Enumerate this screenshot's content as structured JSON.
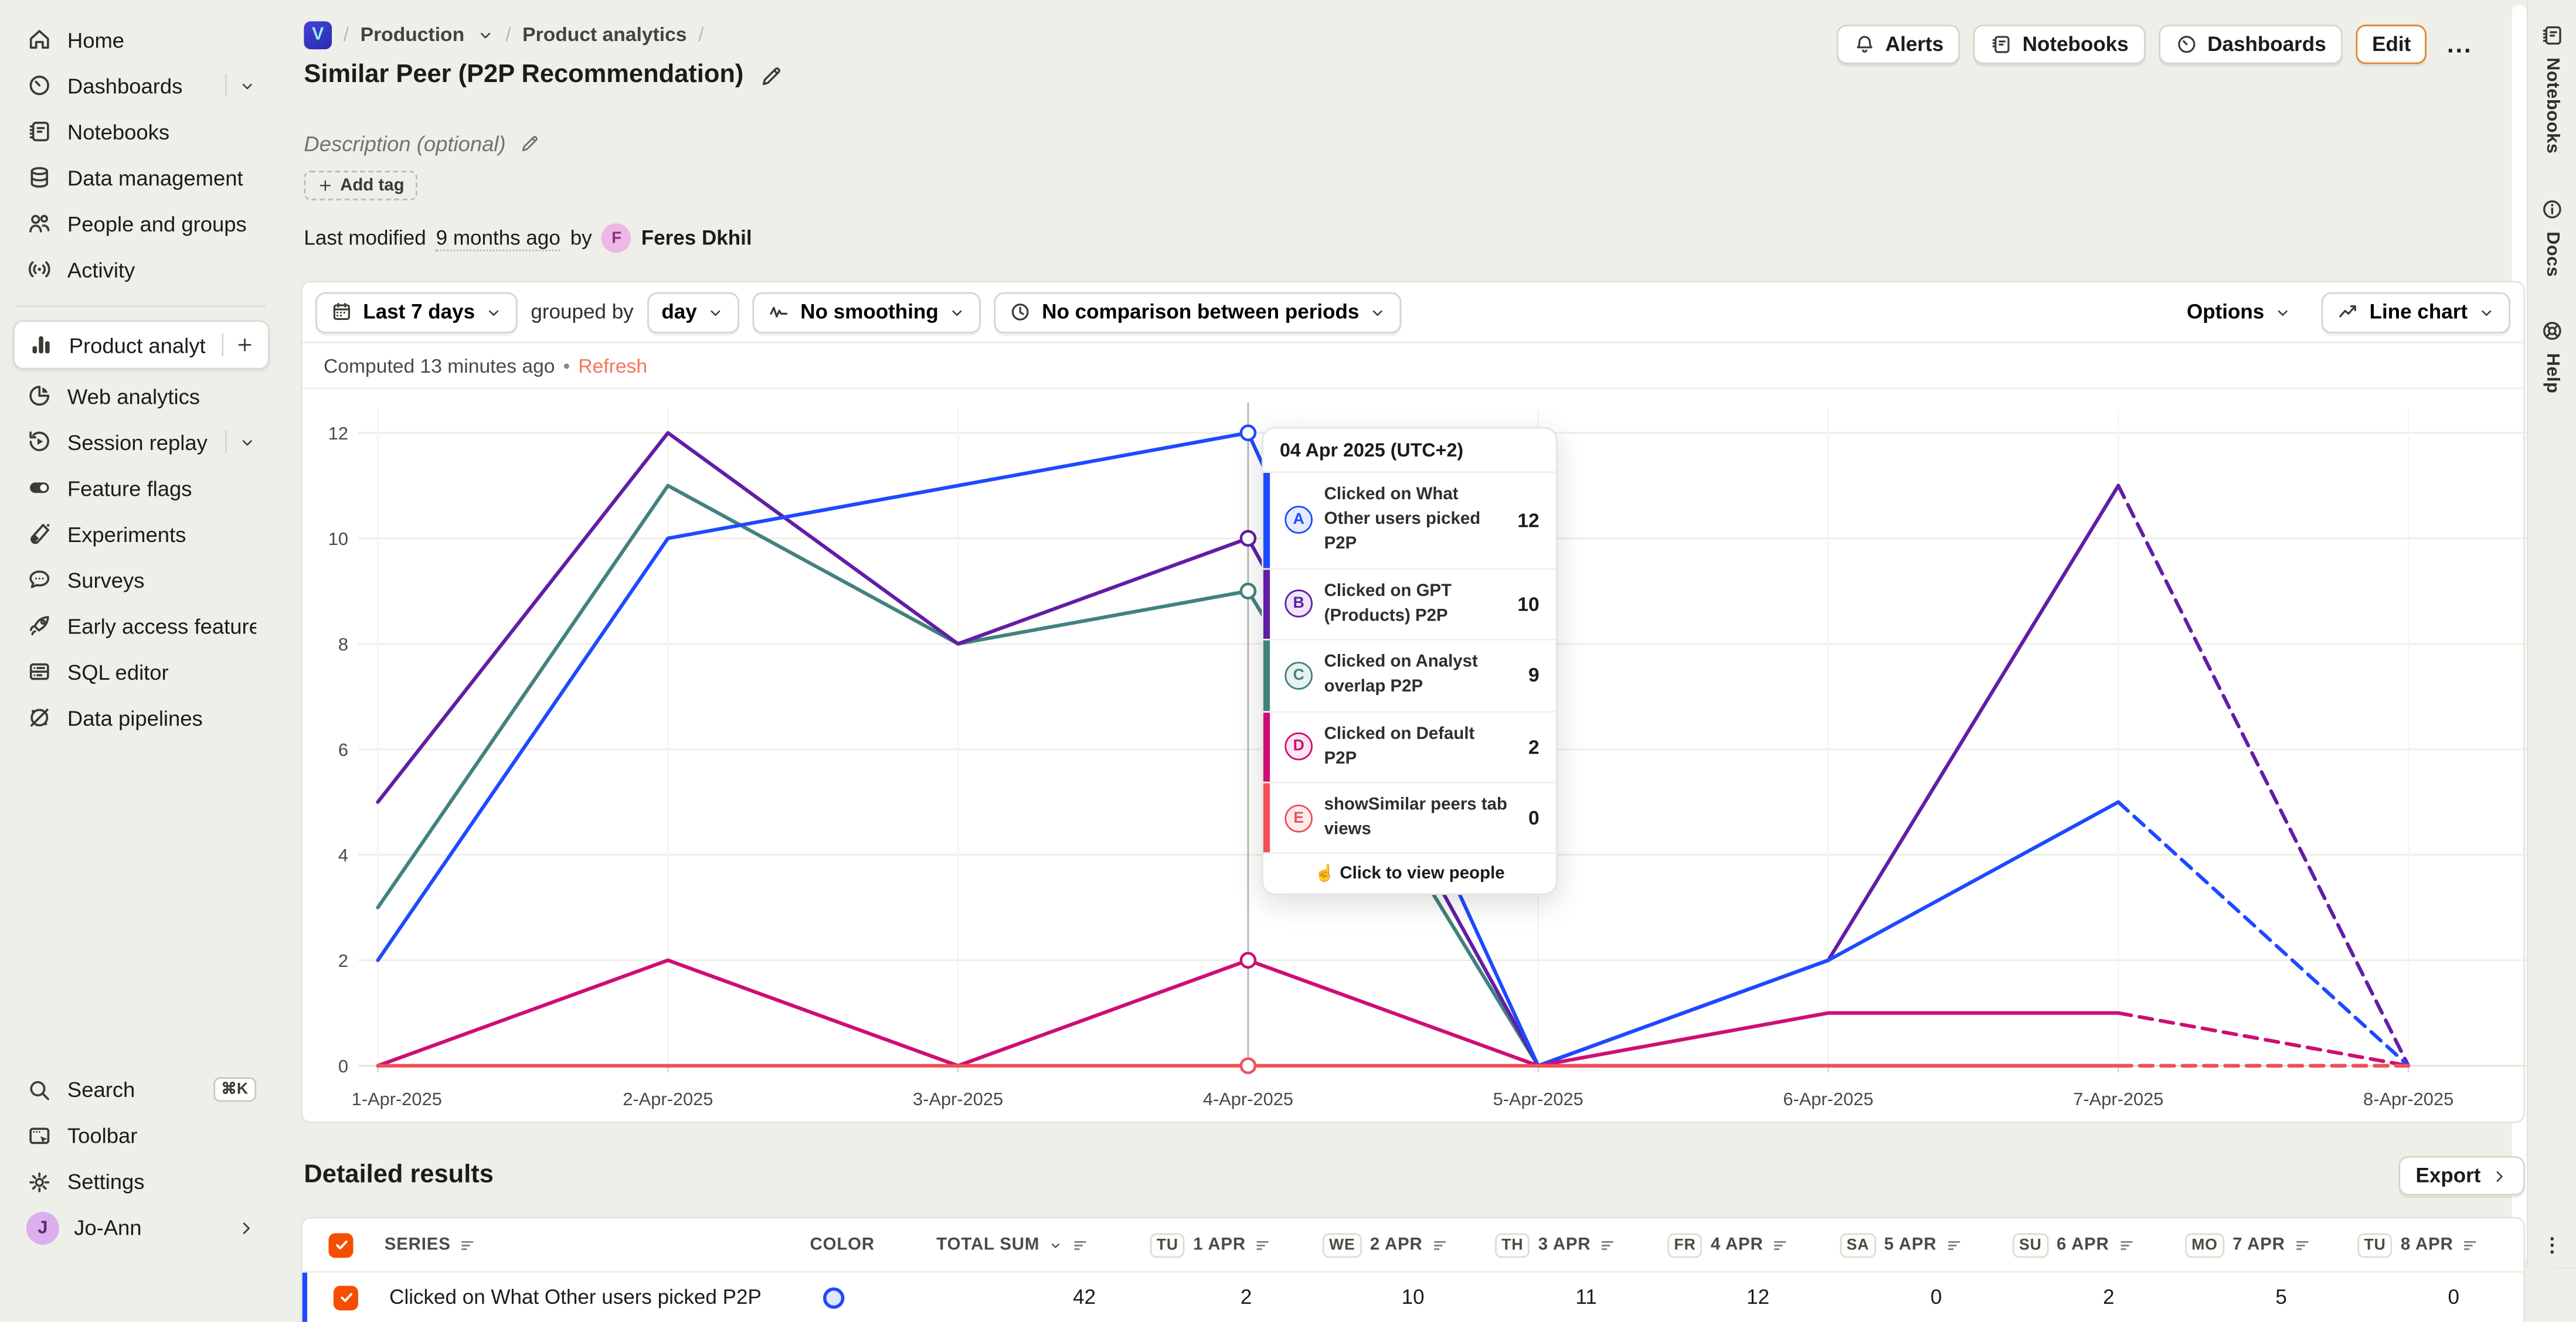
{
  "breadcrumb": {
    "separator": "/",
    "project": "Production",
    "section": "Product analytics",
    "logo_letter": "V"
  },
  "title": "Similar Peer (P2P Recommendation)",
  "header_buttons": {
    "alerts": "Alerts",
    "notebooks": "Notebooks",
    "dashboards": "Dashboards",
    "edit": "Edit",
    "more": "..."
  },
  "description_placeholder": "Description (optional)",
  "tags": {
    "add_tag_label": "Add tag"
  },
  "last_modified": {
    "prefix": "Last modified",
    "time": "9 months ago",
    "by": "by",
    "author": "Feres Dkhil",
    "author_initial": "F"
  },
  "sidebar": {
    "items": [
      {
        "label": "Home",
        "icon": "home"
      },
      {
        "label": "Dashboards",
        "icon": "gauge",
        "trailing": "chevron"
      },
      {
        "label": "Notebooks",
        "icon": "notebook"
      },
      {
        "label": "Data management",
        "icon": "database"
      },
      {
        "label": "People and groups",
        "icon": "people"
      },
      {
        "label": "Activity",
        "icon": "activity"
      },
      {
        "divider": true
      },
      {
        "label": "Product analytics",
        "icon": "bar-chart",
        "active": true,
        "trailing": "plus"
      },
      {
        "label": "Web analytics",
        "icon": "pie"
      },
      {
        "label": "Session replay",
        "icon": "session-replay",
        "trailing": "chevron"
      },
      {
        "label": "Feature flags",
        "icon": "toggle"
      },
      {
        "label": "Experiments",
        "icon": "flask"
      },
      {
        "label": "Surveys",
        "icon": "chat"
      },
      {
        "label": "Early access features",
        "icon": "rocket"
      },
      {
        "label": "SQL editor",
        "icon": "server"
      },
      {
        "label": "Data pipelines",
        "icon": "pipeline"
      }
    ],
    "bottom": [
      {
        "label": "Search",
        "icon": "search",
        "shortcut": "⌘K"
      },
      {
        "label": "Toolbar",
        "icon": "toolbar"
      },
      {
        "label": "Settings",
        "icon": "gear"
      }
    ],
    "user": {
      "name": "Jo-Ann",
      "initial": "J"
    }
  },
  "filters": {
    "date_range": "Last 7 days",
    "grouped_by_label": "grouped by",
    "interval": "day",
    "smoothing": "No smoothing",
    "comparison": "No comparison between periods",
    "options": "Options",
    "chart_type": "Line chart"
  },
  "computed": {
    "text": "Computed 13 minutes ago",
    "separator": "•",
    "refresh": "Refresh"
  },
  "tooltip": {
    "date": "04 Apr 2025 (UTC+2)",
    "rows": [
      {
        "letter": "A",
        "label": "Clicked on What Other users picked P2P",
        "value": 12,
        "color": "#1d4aff"
      },
      {
        "letter": "B",
        "label": "Clicked on GPT (Products) P2P",
        "value": 10,
        "color": "#621da6"
      },
      {
        "letter": "C",
        "label": "Clicked on Analyst overlap P2P",
        "value": 9,
        "color": "#42827e"
      },
      {
        "letter": "D",
        "label": "Clicked on Default P2P",
        "value": 2,
        "color": "#ce0e74"
      },
      {
        "letter": "E",
        "label": "showSimilar peers tab views",
        "value": 0,
        "color": "#f14f58"
      }
    ],
    "footer": "Click to view people"
  },
  "chart_data": {
    "type": "line",
    "x": [
      "1-Apr-2025",
      "2-Apr-2025",
      "3-Apr-2025",
      "4-Apr-2025",
      "5-Apr-2025",
      "6-Apr-2025",
      "7-Apr-2025",
      "8-Apr-2025"
    ],
    "series": [
      {
        "name": "Clicked on What Other users picked P2P",
        "letter": "A",
        "color": "#1d4aff",
        "values": [
          2,
          10,
          11,
          12,
          0,
          2,
          5,
          0
        ]
      },
      {
        "name": "Clicked on GPT (Products) P2P",
        "letter": "B",
        "color": "#621da6",
        "values": [
          5,
          12,
          8,
          10,
          0,
          2,
          11,
          0
        ]
      },
      {
        "name": "Clicked on Analyst overlap P2P",
        "letter": "C",
        "color": "#42827e",
        "values": [
          3,
          11,
          8,
          9,
          0,
          0,
          0,
          0
        ]
      },
      {
        "name": "Clicked on Default P2P",
        "letter": "D",
        "color": "#ce0e74",
        "values": [
          0,
          2,
          0,
          2,
          0,
          1,
          1,
          0
        ]
      },
      {
        "name": "showSimilar peers tab views",
        "letter": "E",
        "color": "#f14f58",
        "values": [
          0,
          0,
          0,
          0,
          0,
          0,
          0,
          0
        ]
      }
    ],
    "ylim": [
      0,
      12
    ],
    "yticks": [
      0,
      2,
      4,
      6,
      8,
      10,
      12
    ],
    "hover_index": 3,
    "dashed_from_index": 6,
    "grid": true,
    "legend_position": "none",
    "title": "",
    "xlabel": "",
    "ylabel": ""
  },
  "detailed_results": {
    "heading": "Detailed results",
    "export": "Export"
  },
  "table": {
    "series_header": "SERIES",
    "color_header": "COLOR",
    "total_header": "TOTAL SUM",
    "days": [
      {
        "day": "TU",
        "date": "1 APR"
      },
      {
        "day": "WE",
        "date": "2 APR"
      },
      {
        "day": "TH",
        "date": "3 APR"
      },
      {
        "day": "FR",
        "date": "4 APR"
      },
      {
        "day": "SA",
        "date": "5 APR"
      },
      {
        "day": "SU",
        "date": "6 APR"
      },
      {
        "day": "MO",
        "date": "7 APR"
      },
      {
        "day": "TU",
        "date": "8 APR"
      }
    ],
    "rows": [
      {
        "label": "Clicked on What Other users picked P2P",
        "color": "#1d4aff",
        "total": 42,
        "values": [
          2,
          10,
          11,
          12,
          0,
          2,
          5,
          0
        ]
      }
    ]
  },
  "rail": {
    "items": [
      {
        "label": "Notebooks",
        "icon": "notebook"
      },
      {
        "label": "Docs",
        "icon": "info"
      },
      {
        "label": "Help",
        "icon": "life-ring"
      }
    ],
    "dots": "⋮"
  },
  "colors": {
    "background": "#eeefe9",
    "card": "#ffffff",
    "accent": "#f54e00",
    "edit_border": "#e0862c",
    "refresh_link": "#f7745c",
    "series": [
      "#1d4aff",
      "#621da6",
      "#42827e",
      "#ce0e74",
      "#f14f58"
    ]
  }
}
